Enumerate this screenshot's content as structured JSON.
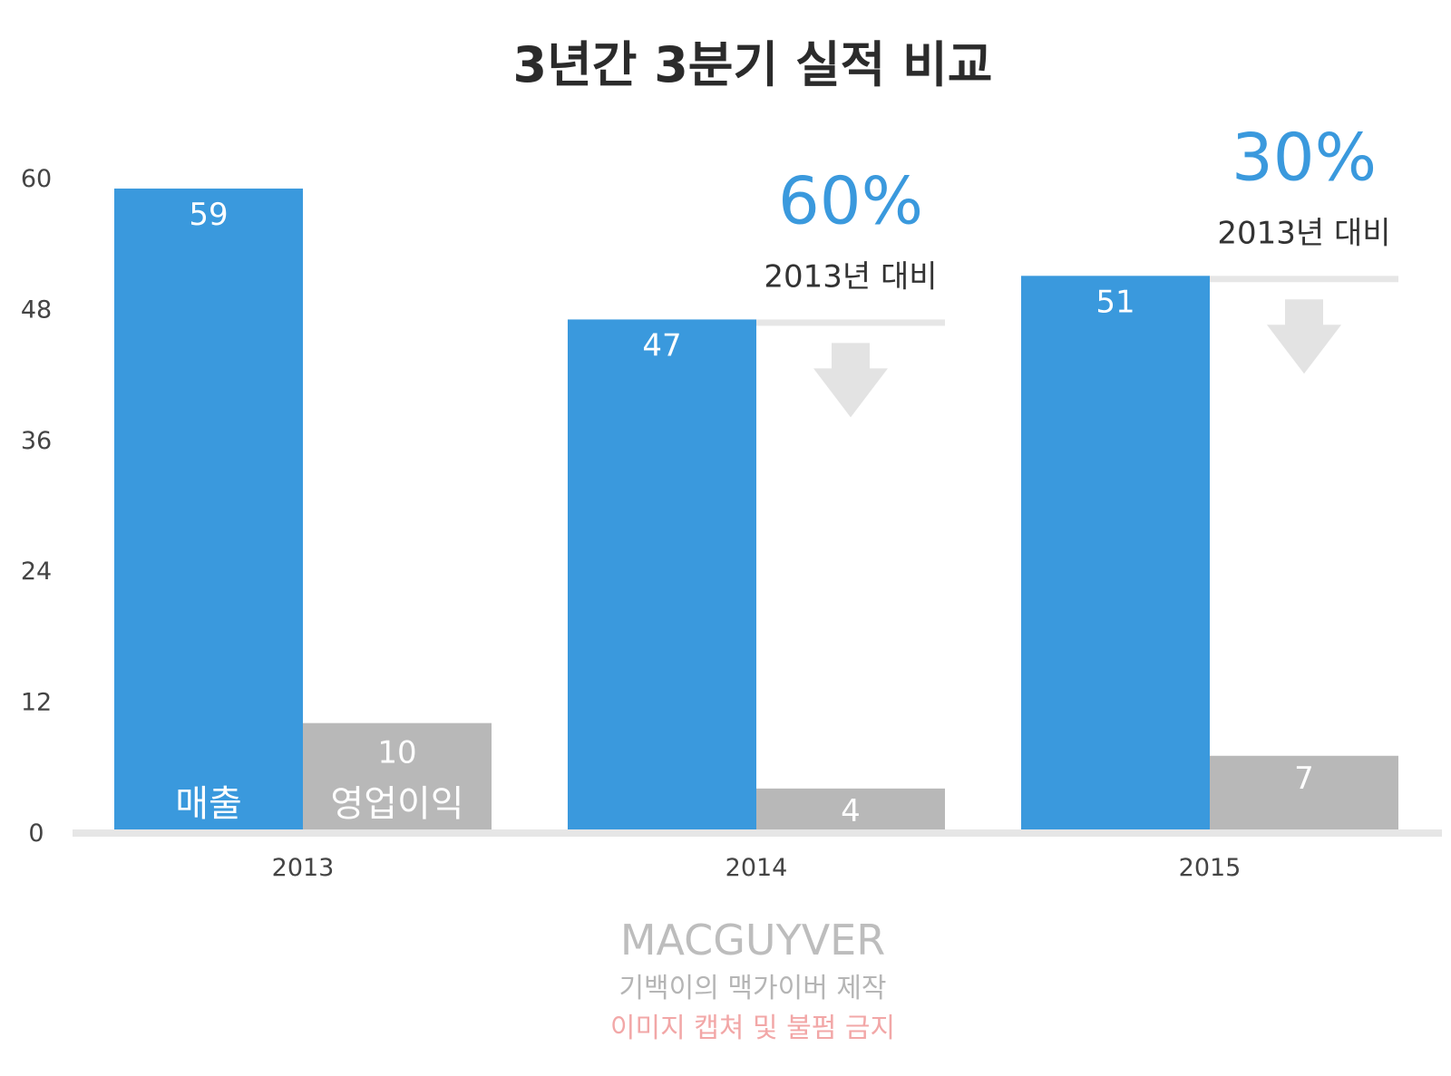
{
  "chart_data": {
    "type": "bar",
    "title": "3년간 3분기 실적 비교",
    "xlabel": "",
    "ylabel": "",
    "categories": [
      "2013",
      "2014",
      "2015"
    ],
    "series": [
      {
        "name": "매출",
        "values": [
          59,
          47,
          51
        ],
        "color": "#3a99dd"
      },
      {
        "name": "영업이익",
        "values": [
          10,
          4,
          7
        ],
        "color": "#b8b8b8"
      }
    ],
    "ylim": [
      0,
      60
    ],
    "yticks": [
      "0",
      "12",
      "24",
      "36",
      "48",
      "60"
    ],
    "grid": false,
    "legend": "inside-bars",
    "annotations": [
      {
        "category": "2014",
        "percent": "60%",
        "text": "2013년 대비",
        "arrow": "down"
      },
      {
        "category": "2015",
        "percent": "30%",
        "text": "2013년 대비",
        "arrow": "down"
      }
    ]
  },
  "watermark": {
    "brand": "MACGUYVER",
    "credit": "기백이의 맥가이버 제작",
    "notice": "이미지 캡쳐 및 불펌 금지"
  },
  "colors": {
    "revenue": "#3a99dd",
    "profit": "#b8b8b8",
    "axis": "#e6e6e6",
    "arrow": "#e3e3e3",
    "accent": "#3a99dd"
  }
}
